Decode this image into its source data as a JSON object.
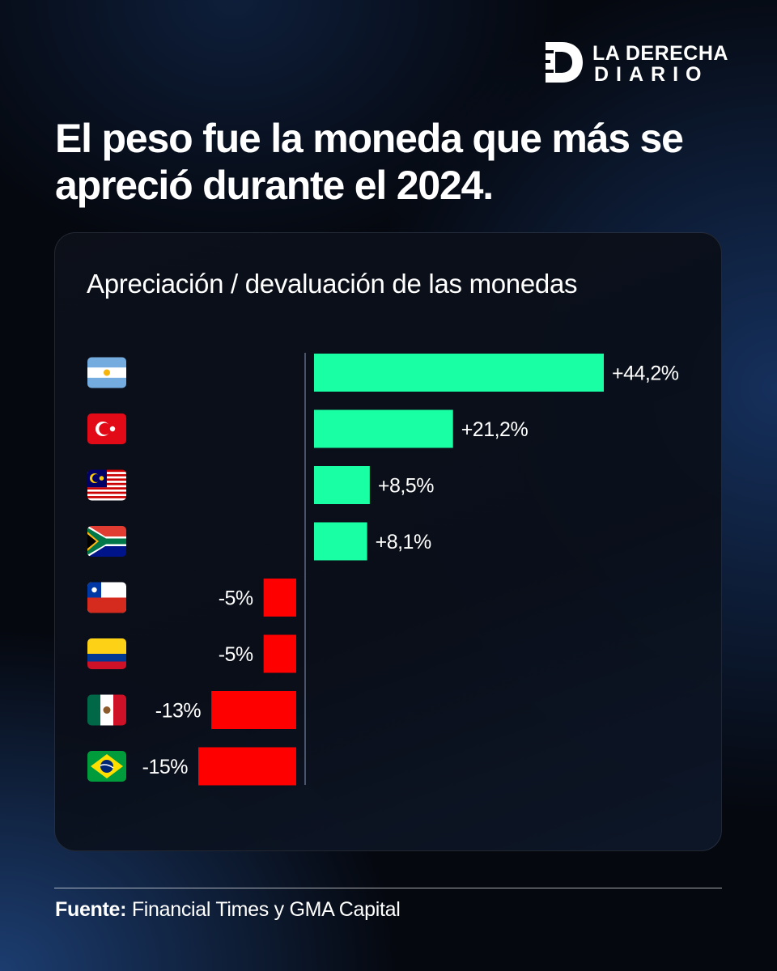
{
  "brand": {
    "line1": "LA DERECHA",
    "line2": "DIARIO"
  },
  "headline": "El peso fue la moneda que más se apreció durante el 2024.",
  "source": {
    "label": "Fuente:",
    "text": " Financial Times y GMA Capital"
  },
  "colors": {
    "positive": "#19ffa3",
    "negative": "#ff0000",
    "background": "#05080f"
  },
  "chart_data": {
    "type": "bar",
    "orientation": "horizontal",
    "title": "Apreciación / devaluación de las monedas",
    "categories": [
      "argentina-flag-icon",
      "turkey-flag-icon",
      "malaysia-flag-icon",
      "south-africa-flag-icon",
      "chile-flag-icon",
      "colombia-flag-icon",
      "mexico-flag-icon",
      "brazil-flag-icon"
    ],
    "values": [
      44.2,
      21.2,
      8.5,
      8.1,
      -5,
      -5,
      -13,
      -15
    ],
    "labels": [
      "+44,2%",
      "+21,2%",
      "+8,5%",
      "+8,1%",
      "-5%",
      "-5%",
      "-13%",
      "-15%"
    ],
    "unit": "%",
    "grid": false,
    "legend": "none"
  }
}
